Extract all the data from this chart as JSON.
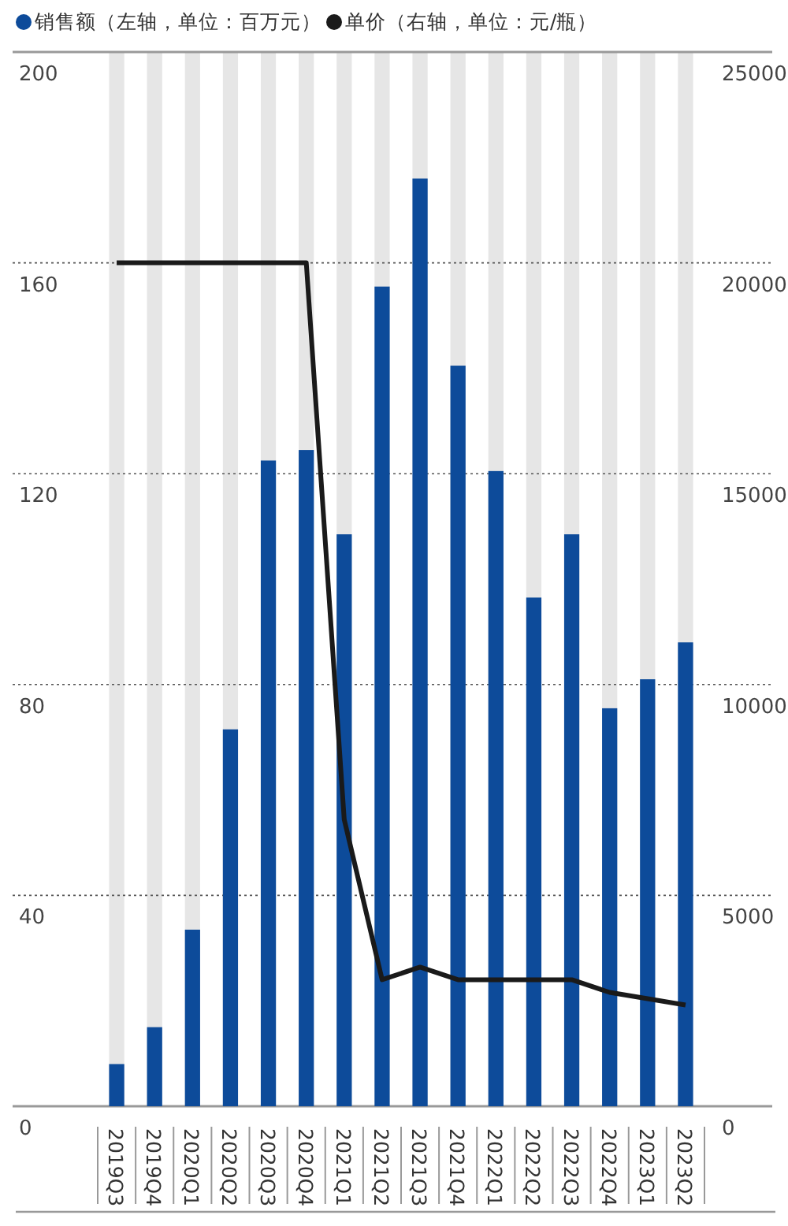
{
  "chart_data": {
    "type": "bar",
    "categories": [
      "2019Q3",
      "2019Q4",
      "2020Q1",
      "2020Q2",
      "2020Q3",
      "2020Q4",
      "2021Q1",
      "2021Q2",
      "2021Q3",
      "2021Q4",
      "2022Q1",
      "2022Q2",
      "2022Q3",
      "2022Q4",
      "2023Q1",
      "2023Q2"
    ],
    "series": [
      {
        "name": "销售额（左轴，单位：百万元）",
        "color": "#0d4b9a",
        "values": [
          8,
          15,
          33.5,
          71.5,
          122.5,
          124.5,
          108.5,
          155.5,
          176,
          140.5,
          120.5,
          96.5,
          108.5,
          75.5,
          81,
          88
        ]
      },
      {
        "name": "单价（右轴，单位：元/瓶）",
        "type": "line",
        "axis": "y2",
        "color": "#1a1a1a",
        "values": [
          20000,
          20000,
          20000,
          20000,
          20000,
          20000,
          6800,
          3000,
          3300,
          3000,
          3000,
          3000,
          3000,
          2700,
          2550,
          2400
        ]
      }
    ],
    "ylim": [
      0,
      200
    ],
    "yticks": [
      0,
      40,
      80,
      120,
      160,
      200
    ],
    "y2lim": [
      0,
      25000
    ],
    "y2ticks": [
      0,
      5000,
      10000,
      15000,
      20000,
      25000
    ],
    "grid": "y",
    "legend": "top left",
    "marker": "none",
    "line_style": "solid"
  }
}
